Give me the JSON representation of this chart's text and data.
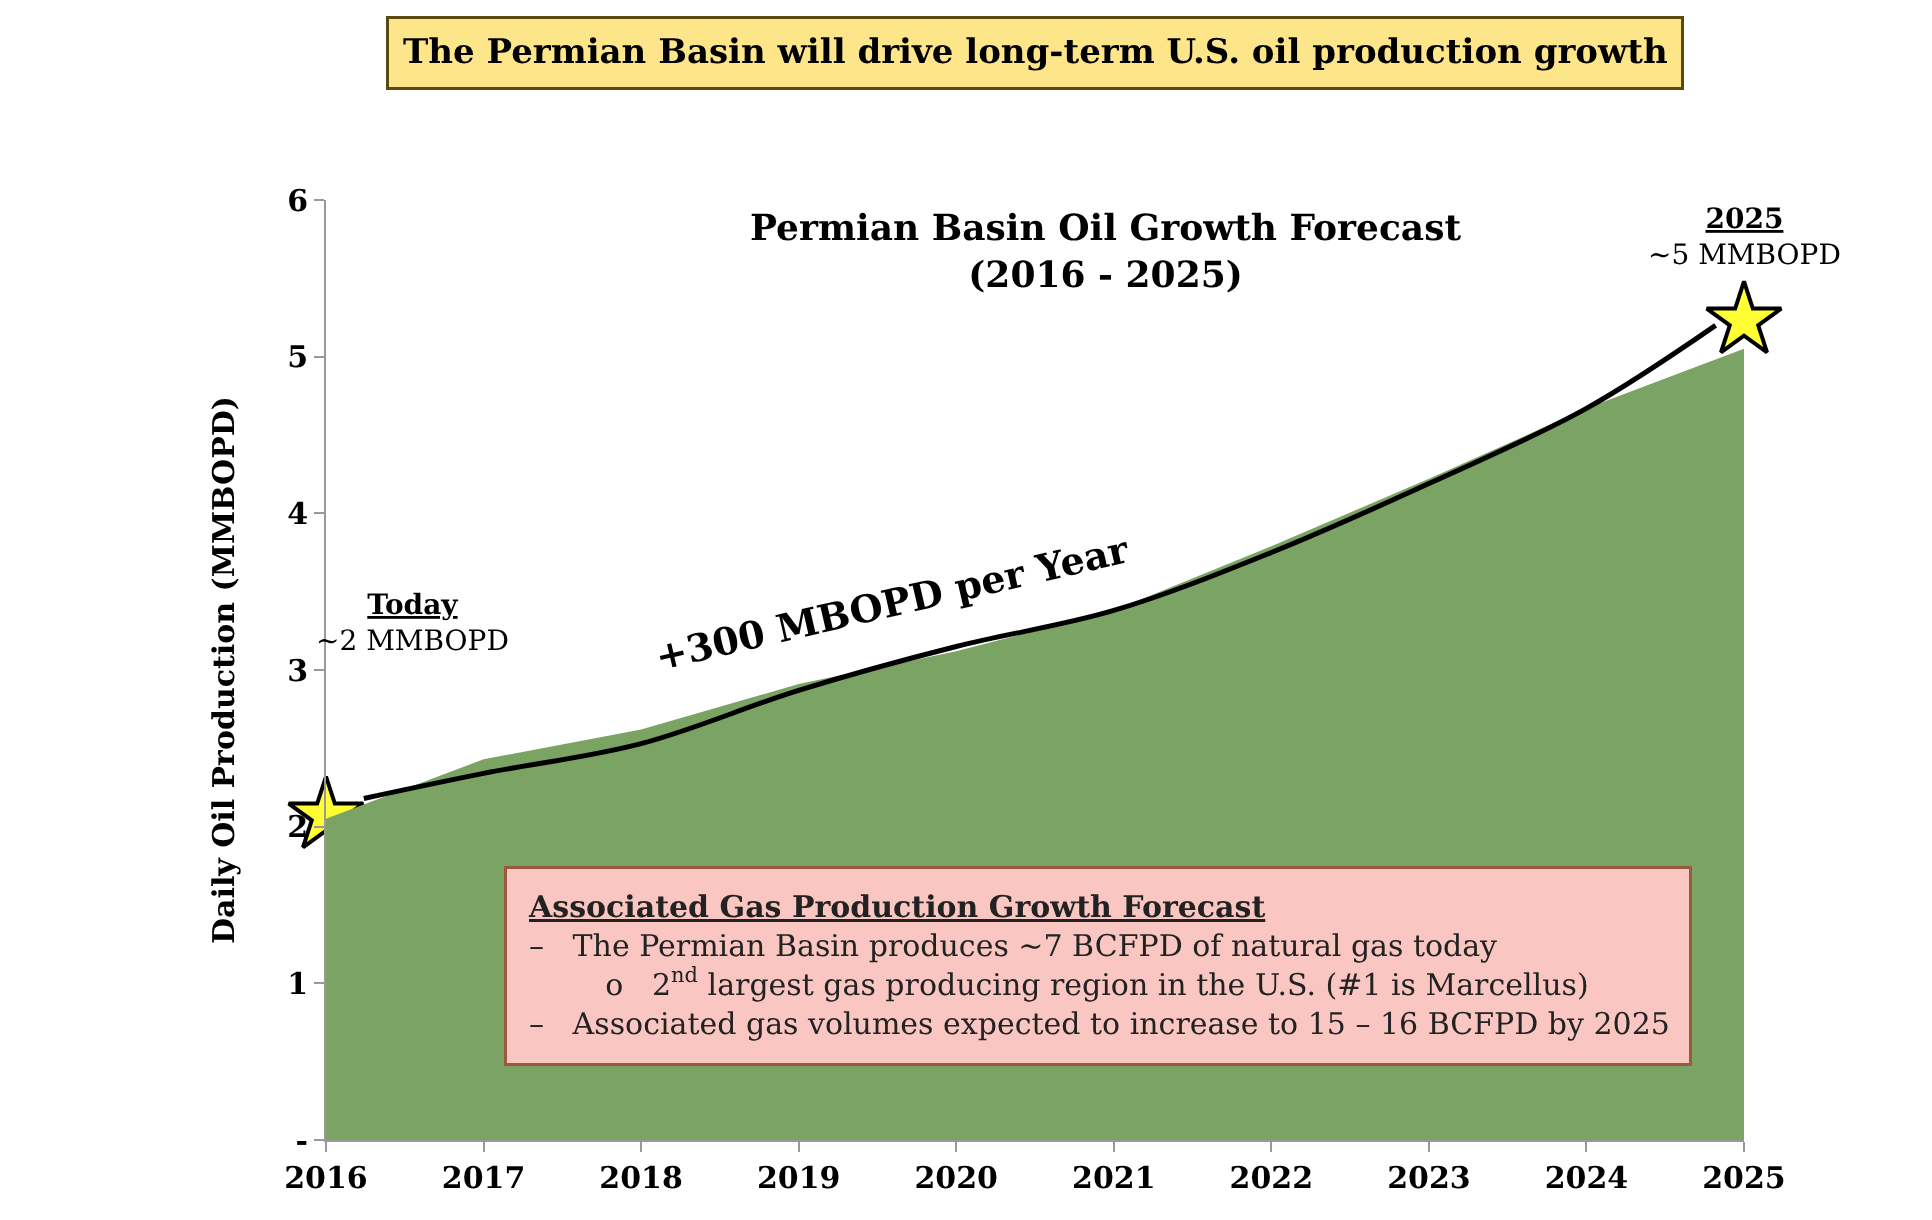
{
  "chart_data": {
    "type": "area",
    "title": "The Permian Basin will drive long-term U.S. oil production growth",
    "subtitle": "Permian Basin Oil Growth Forecast\n(2016 - 2025)",
    "ylabel": "Daily Oil Production (MMBOPD)",
    "x": [
      2016,
      2017,
      2018,
      2019,
      2020,
      2021,
      2022,
      2023,
      2024,
      2025
    ],
    "series": [
      {
        "color": "#7ba363",
        "values": [
          2.05,
          2.43,
          2.62,
          2.91,
          3.12,
          3.38,
          3.79,
          4.22,
          4.67,
          5.05
        ]
      },
      {
        "type": "line",
        "color": "#000000",
        "x": [
          2016.24,
          2017,
          2018,
          2019,
          2020,
          2021,
          2022,
          2023,
          2024,
          2024.82
        ],
        "values": [
          2.18,
          2.34,
          2.53,
          2.87,
          3.15,
          3.38,
          3.75,
          4.19,
          4.67,
          5.2
        ]
      },
      {
        "type": "scatter",
        "color": "#ffff33",
        "marker": "star",
        "x": [
          2016,
          2025
        ],
        "values": [
          2.07,
          5.23
        ]
      }
    ],
    "xlim": [
      2016,
      2025
    ],
    "xticks": [
      2016,
      2017,
      2018,
      2019,
      2020,
      2021,
      2022,
      2023,
      2024,
      2025
    ],
    "ylim": [
      0,
      6
    ],
    "yticks": [
      {
        "value": 0,
        "label": "-"
      },
      1,
      2,
      3,
      4,
      5,
      6
    ],
    "annotations": [
      "Today\n~2 MMBOPD",
      "2025\n~5 MMBOPD",
      "+300 MBOPD per Year",
      "Associated Gas Production Growth Forecast\n–   The Permian Basin produces ~7 BCFPD of natural gas today\n        o   2$^{nd}$ largest gas producing region in the U.S. (#1 is Marcellus)\n–   Associated gas volumes expected to increase to 15 – 16 BCFPD by 2025"
    ]
  }
}
